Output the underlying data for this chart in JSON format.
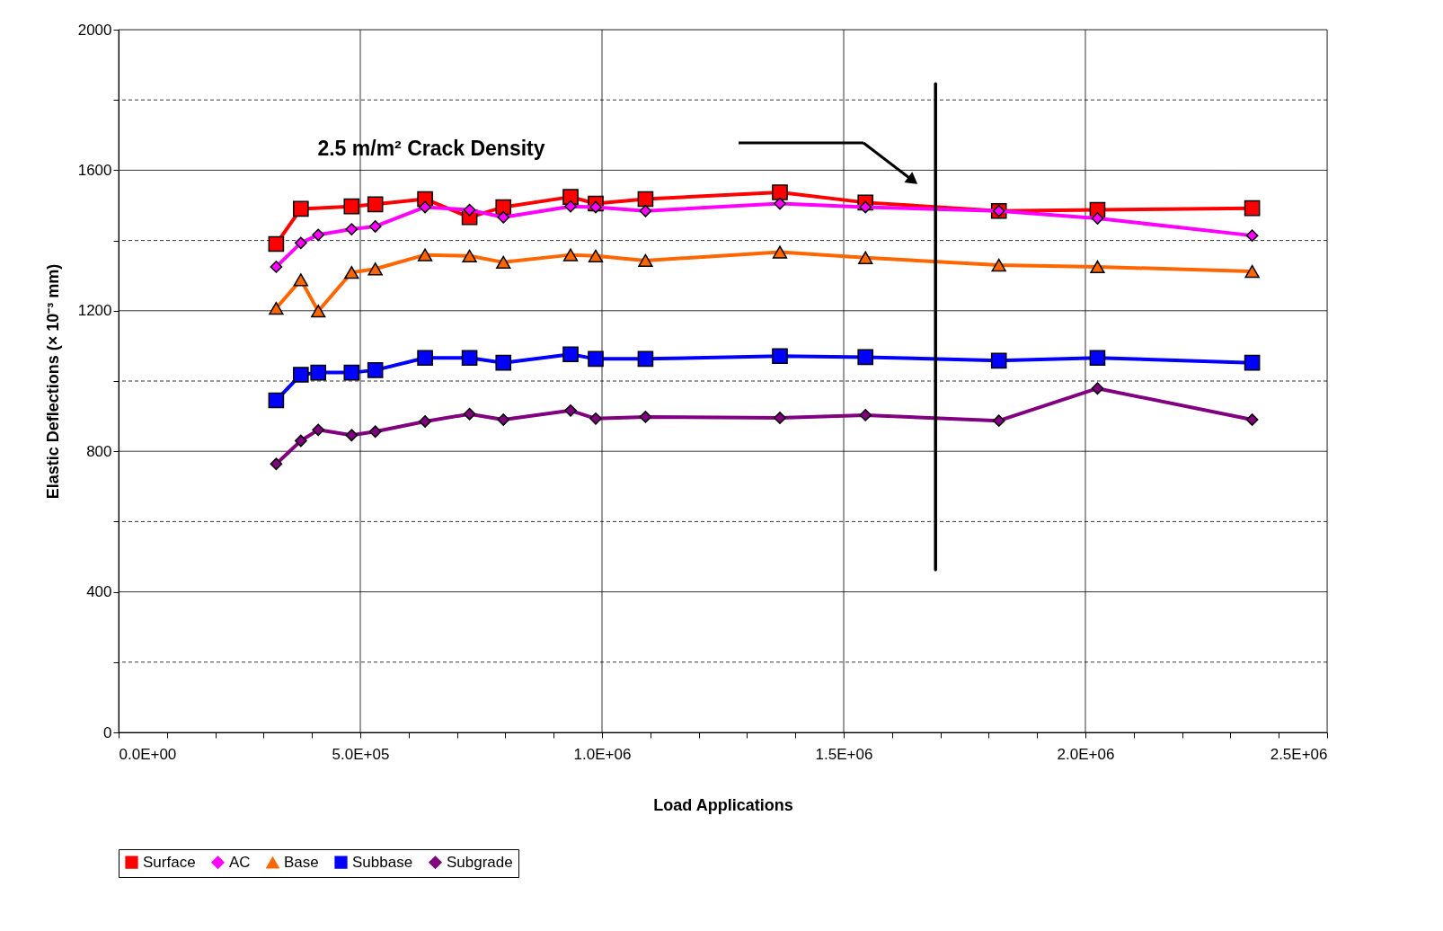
{
  "chart_data": {
    "type": "line",
    "xlabel": "Load Applications",
    "ylabel": "Elastic Deflections (× 10⁻³ mm)",
    "xlim": [
      0,
      2500000
    ],
    "ylim": [
      0,
      2000
    ],
    "xticks": [
      {
        "value": 0,
        "label": "0.0E+00"
      },
      {
        "value": 100000,
        "label": null
      },
      {
        "value": 200000,
        "label": null
      },
      {
        "value": 300000,
        "label": null
      },
      {
        "value": 400000,
        "label": null
      },
      {
        "value": 500000,
        "label": "5.0E+05"
      },
      {
        "value": 600000,
        "label": null
      },
      {
        "value": 700000,
        "label": null
      },
      {
        "value": 800000,
        "label": null
      },
      {
        "value": 900000,
        "label": null
      },
      {
        "value": 1000000,
        "label": "1.0E+06"
      },
      {
        "value": 1100000,
        "label": null
      },
      {
        "value": 1200000,
        "label": null
      },
      {
        "value": 1300000,
        "label": null
      },
      {
        "value": 1400000,
        "label": null
      },
      {
        "value": 1500000,
        "label": "1.5E+06"
      },
      {
        "value": 1600000,
        "label": null
      },
      {
        "value": 1700000,
        "label": null
      },
      {
        "value": 1800000,
        "label": null
      },
      {
        "value": 1900000,
        "label": null
      },
      {
        "value": 2000000,
        "label": "2.0E+06"
      },
      {
        "value": 2100000,
        "label": null
      },
      {
        "value": 2200000,
        "label": null
      },
      {
        "value": 2300000,
        "label": null
      },
      {
        "value": 2400000,
        "label": null
      },
      {
        "value": 2500000,
        "label": "2.5E+06"
      }
    ],
    "yticks": [
      0,
      {
        "value": 200,
        "label": null
      },
      400,
      {
        "value": 600,
        "label": null
      },
      800,
      {
        "value": 1000,
        "label": null
      },
      1200,
      {
        "value": 1400,
        "label": null
      },
      1600,
      {
        "value": 1800,
        "label": null
      },
      2000
    ],
    "grid": true,
    "legend": "bottom",
    "line_style": "solid",
    "annotations": [
      "2.5 m/m² Crack Density"
    ],
    "series": [
      {
        "name": "Surface",
        "color": "#ff0000",
        "marker": "square",
        "x": [
          326000,
          377000,
          482000,
          531000,
          634000,
          726000,
          796000,
          935000,
          987000,
          1090000,
          1368000,
          1545000,
          1821000,
          2025000,
          2345000
        ],
        "values": [
          1390,
          1490,
          1497,
          1503,
          1518,
          1466,
          1495,
          1524,
          1505,
          1518,
          1537,
          1508,
          1484,
          1487,
          1492
        ]
      },
      {
        "name": "AC",
        "color": "#ff00ff",
        "marker": "diamond",
        "x": [
          326000,
          377000,
          413000,
          482000,
          531000,
          634000,
          726000,
          796000,
          935000,
          987000,
          1090000,
          1368000,
          1545000,
          1821000,
          2025000,
          2345000
        ],
        "values": [
          1325,
          1393,
          1416,
          1432,
          1440,
          1495,
          1487,
          1466,
          1497,
          1495,
          1484,
          1505,
          1495,
          1484,
          1463,
          1414
        ]
      },
      {
        "name": "Base",
        "color": "#ff6600",
        "marker": "triangle",
        "x": [
          326000,
          377000,
          413000,
          482000,
          531000,
          634000,
          726000,
          796000,
          935000,
          987000,
          1090000,
          1368000,
          1545000,
          1821000,
          2025000,
          2345000
        ],
        "values": [
          1207,
          1288,
          1199,
          1309,
          1319,
          1359,
          1356,
          1338,
          1359,
          1356,
          1343,
          1367,
          1351,
          1330,
          1325,
          1312
        ]
      },
      {
        "name": "Subbase",
        "color": "#0000ff",
        "marker": "square",
        "x": [
          326000,
          377000,
          413000,
          482000,
          531000,
          634000,
          726000,
          796000,
          935000,
          987000,
          1090000,
          1368000,
          1545000,
          1821000,
          2025000,
          2345000
        ],
        "values": [
          945,
          1018,
          1024,
          1024,
          1031,
          1066,
          1066,
          1052,
          1076,
          1063,
          1063,
          1071,
          1068,
          1058,
          1066,
          1052
        ]
      },
      {
        "name": "Subgrade",
        "color": "#800080",
        "marker": "diamond",
        "x": [
          326000,
          377000,
          413000,
          482000,
          531000,
          634000,
          726000,
          796000,
          935000,
          987000,
          1090000,
          1368000,
          1545000,
          1821000,
          2025000,
          2345000
        ],
        "values": [
          764,
          830,
          861,
          846,
          856,
          885,
          906,
          890,
          916,
          893,
          898,
          895,
          903,
          887,
          979,
          890
        ]
      },
      {
        "color": "#000000",
        "marker": "none",
        "x": [
          1690000,
          1690000
        ],
        "values": [
          1846,
          463
        ]
      }
    ]
  }
}
